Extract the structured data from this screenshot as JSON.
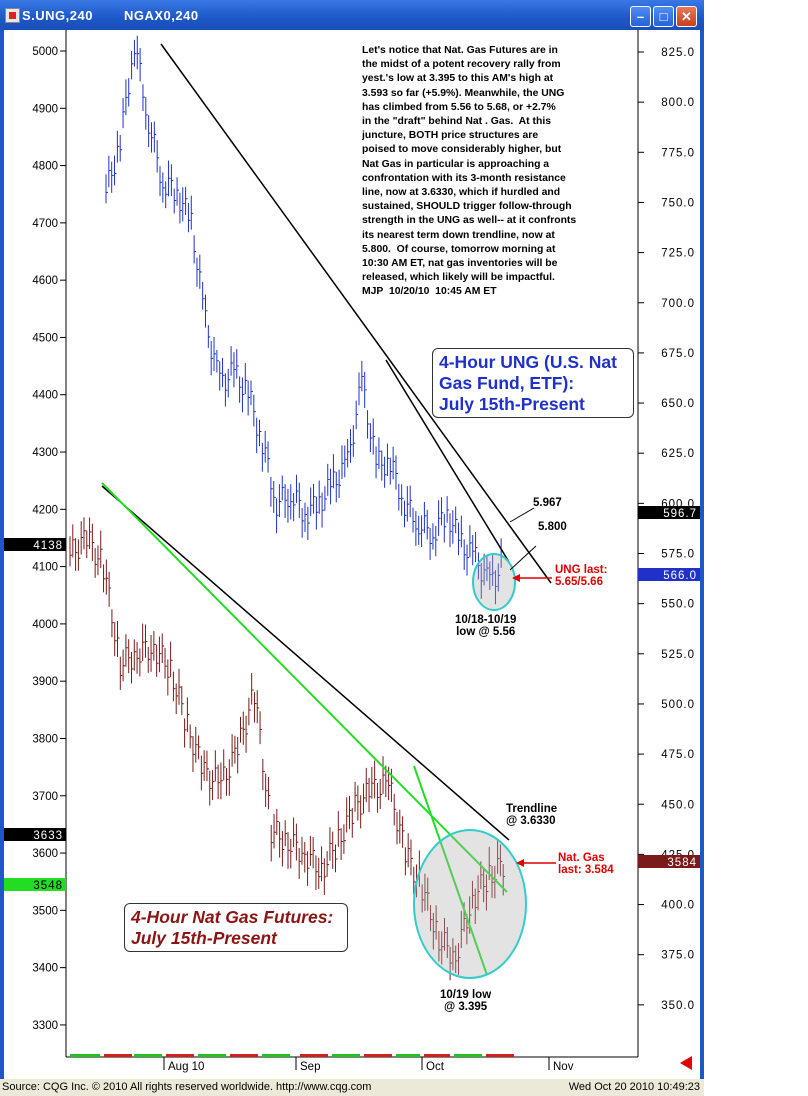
{
  "window": {
    "tab1": "S.UNG,240",
    "tab2": "NGAX0,240",
    "buttons": [
      "minimize-icon",
      "maximize-icon",
      "close-icon"
    ]
  },
  "chart_data": {
    "type": "ohlc",
    "title": "",
    "left_axis": {
      "label": "Nat Gas Futures",
      "ylim": [
        3250,
        5050
      ],
      "ticks": [
        3300,
        3400,
        3500,
        3600,
        3700,
        3800,
        3900,
        4000,
        4100,
        4200,
        4300,
        4400,
        4500,
        4600,
        4700,
        4800,
        4900,
        5000
      ]
    },
    "right_axis": {
      "label": "UNG",
      "ylim": [
        3.26,
        8.46
      ],
      "ticks": [
        "350.0",
        "375.0",
        "400.0",
        "425.0",
        "450.0",
        "475.0",
        "500.0",
        "525.0",
        "550.0",
        "575.0",
        "600.0",
        "625.0",
        "650.0",
        "675.0",
        "700.0",
        "725.0",
        "750.0",
        "775.0",
        "800.0",
        "825.0"
      ]
    },
    "x_labels": [
      "Aug 10",
      "Sep",
      "Oct",
      "Nov"
    ],
    "grid": false,
    "series": [
      {
        "name": "UNG",
        "color": "#1f31c8",
        "axis": "right",
        "points": [
          [
            0,
            7.55
          ],
          [
            1,
            7.8
          ],
          [
            2,
            8.3
          ],
          [
            3,
            7.9
          ],
          [
            4,
            7.6
          ],
          [
            5,
            7.55
          ],
          [
            6,
            7.4
          ],
          [
            7,
            6.9
          ],
          [
            8,
            6.6
          ],
          [
            9,
            6.65
          ],
          [
            10,
            6.55
          ],
          [
            11,
            6.3
          ],
          [
            12,
            6.0
          ],
          [
            13,
            6.05
          ],
          [
            14,
            5.95
          ],
          [
            15,
            6.0
          ],
          [
            16,
            6.1
          ],
          [
            17,
            6.2
          ],
          [
            18,
            6.6
          ],
          [
            19,
            6.2
          ],
          [
            20,
            6.2
          ],
          [
            21,
            6.0
          ],
          [
            22,
            5.9
          ],
          [
            23,
            5.85
          ],
          [
            24,
            5.95
          ],
          [
            25,
            5.8
          ],
          [
            26,
            5.72
          ],
          [
            27,
            5.6
          ],
          [
            28,
            5.7
          ]
        ]
      },
      {
        "name": "Nat Gas",
        "color": "#7a1a1a",
        "axis": "left",
        "points": [
          [
            0,
            4120
          ],
          [
            1,
            4150
          ],
          [
            2,
            4100
          ],
          [
            3,
            3930
          ],
          [
            4,
            3950
          ],
          [
            5,
            3960
          ],
          [
            6,
            3920
          ],
          [
            7,
            3820
          ],
          [
            8,
            3740
          ],
          [
            9,
            3720
          ],
          [
            10,
            3780
          ],
          [
            11,
            3880
          ],
          [
            12,
            3640
          ],
          [
            13,
            3620
          ],
          [
            14,
            3600
          ],
          [
            15,
            3570
          ],
          [
            16,
            3620
          ],
          [
            17,
            3680
          ],
          [
            18,
            3710
          ],
          [
            19,
            3720
          ],
          [
            20,
            3600
          ],
          [
            21,
            3540
          ],
          [
            22,
            3450
          ],
          [
            23,
            3420
          ],
          [
            24,
            3520
          ],
          [
            25,
            3560
          ],
          [
            26,
            3584
          ]
        ]
      }
    ],
    "last_prices": {
      "ung": "566.0",
      "ung_top": "596.7",
      "ng": "3584",
      "ng_1": "4138",
      "ng_2": "3633",
      "ng_3": "3548"
    },
    "annotations": {
      "note": "Let's notice that Nat. Gas Futures are in\nthe midst of a potent recovery rally from\nyest.'s low at 3.395 to this AM's high at\n3.593 so far (+5.9%). Meanwhile, the UNG\nhas climbed from 5.56 to 5.68, or +2.7%\nin the \"draft\" behind Nat . Gas.  At this\njuncture, BOTH price structures are\npoised to move considerably higher, but\nNat Gas in particular is approaching a\nconfrontation with its 3-month resistance\nline, now at 3.6330, which if hurdled and\nsustained, SHOULD trigger follow-through\nstrength in the UNG as well-- at it confronts\nits nearest term down trendline, now at\n5.800.  Of course, tomorrow morning at\n10:30 AM ET, nat gas inventories will be\nreleased, which likely will be impactful.\nMJP  10/20/10  10:45 AM ET",
      "ung_box": "4-Hour UNG (U.S. Nat\nGas Fund, ETF):\nJuly 15th-Present",
      "ng_box": "4-Hour Nat Gas Futures:\nJuly 15th-Present",
      "l5967": "5.967",
      "l5800": "5.800",
      "ung_last": "UNG last:\n5.65/5.66",
      "ung_low": "10/18-10/19\nlow @ 5.56",
      "trendline": "Trendline\n@ 3.6330",
      "ng_last": "Nat. Gas\nlast: 3.584",
      "ng_low": "10/19 low\n@ 3.395"
    }
  },
  "status": {
    "source": "Source: CQG Inc. © 2010 All rights reserved worldwide.  http://www.cqg.com",
    "datetime": "Wed Oct 20 2010  10:49:23"
  }
}
